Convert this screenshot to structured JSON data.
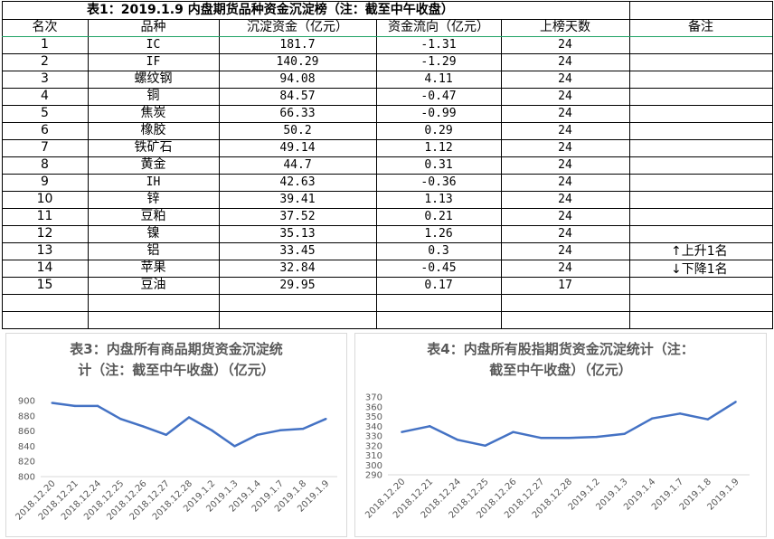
{
  "sheet": {
    "title": "表1：2019.1.9 内盘期货品种资金沉淀榜（注：截至中午收盘）",
    "headers": [
      "名次",
      "品种",
      "沉淀资金（亿元）",
      "资金流向（亿元）",
      "上榜天数",
      "备注"
    ],
    "rows": [
      [
        "1",
        "IC",
        "181.7",
        "-1.31",
        "24"
      ],
      [
        "2",
        "IF",
        "140.29",
        "-1.29",
        "24"
      ],
      [
        "3",
        "螺纹钢",
        "94.08",
        "4.11",
        "24"
      ],
      [
        "4",
        "铜",
        "84.57",
        "-0.47",
        "24"
      ],
      [
        "5",
        "焦炭",
        "66.33",
        "-0.99",
        "24"
      ],
      [
        "6",
        "橡胶",
        "50.2",
        "0.29",
        "24"
      ],
      [
        "7",
        "铁矿石",
        "49.14",
        "1.12",
        "24"
      ],
      [
        "8",
        "黄金",
        "44.7",
        "0.31",
        "24"
      ],
      [
        "9",
        "IH",
        "42.63",
        "-0.36",
        "24"
      ],
      [
        "10",
        "锌",
        "39.41",
        "1.13",
        "24"
      ],
      [
        "11",
        "豆粕",
        "37.52",
        "0.21",
        "24"
      ],
      [
        "12",
        "镍",
        "35.13",
        "1.26",
        "24"
      ],
      [
        "13",
        "铝",
        "33.45",
        "0.3",
        "24"
      ],
      [
        "14",
        "苹果",
        "32.84",
        "-0.45",
        "24"
      ],
      [
        "15",
        "豆油",
        "29.95",
        "0.17",
        "17"
      ]
    ],
    "notes": {
      "up": {
        "arrow": "↑",
        "text": "上升1名"
      },
      "down": {
        "arrow": "↓",
        "text": "下降1名"
      }
    }
  },
  "chart_data": [
    {
      "type": "line",
      "title": "表3：内盘所有商品期货资金沉淀统计（注：截至中午收盘）（亿元）",
      "title_lines": [
        "表3：内盘所有商品期货资金沉淀统",
        "计（注：截至中午收盘）（亿元）"
      ],
      "categories": [
        "2018.12.20",
        "2018.12.21",
        "2018.12.24",
        "2018.12.25",
        "2018.12.26",
        "2018.12.27",
        "2018.12.28",
        "2019.1.2",
        "2019.1.3",
        "2019.1.4",
        "2019.1.7",
        "2019.1.8",
        "2019.1.9"
      ],
      "values": [
        897,
        893,
        893,
        876,
        866,
        855,
        878,
        861,
        840,
        855,
        861,
        863,
        876
      ],
      "ylim": [
        800,
        900
      ],
      "yticks": [
        800,
        820,
        840,
        860,
        880,
        900
      ],
      "color": "#4472c4",
      "grid": false
    },
    {
      "type": "line",
      "title": "表4：内盘所有股指期货资金沉淀统计（注：截至中午收盘）（亿元）",
      "title_lines": [
        "表4：内盘所有股指期货资金沉淀统计（注：",
        "截至中午收盘）（亿元）"
      ],
      "categories": [
        "2018.12.20",
        "2018.12.21",
        "2018.12.24",
        "2018.12.25",
        "2018.12.26",
        "2018.12.27",
        "2018.12.28",
        "2019.1.2",
        "2019.1.3",
        "2019.1.4",
        "2019.1.7",
        "2019.1.8",
        "2019.1.9"
      ],
      "values": [
        334,
        340,
        326,
        320,
        334,
        328,
        328,
        329,
        332,
        348,
        353,
        347,
        365
      ],
      "ylim": [
        290,
        370
      ],
      "yticks": [
        290,
        300,
        310,
        320,
        330,
        340,
        350,
        360,
        370
      ],
      "color": "#4472c4",
      "grid": false
    }
  ]
}
